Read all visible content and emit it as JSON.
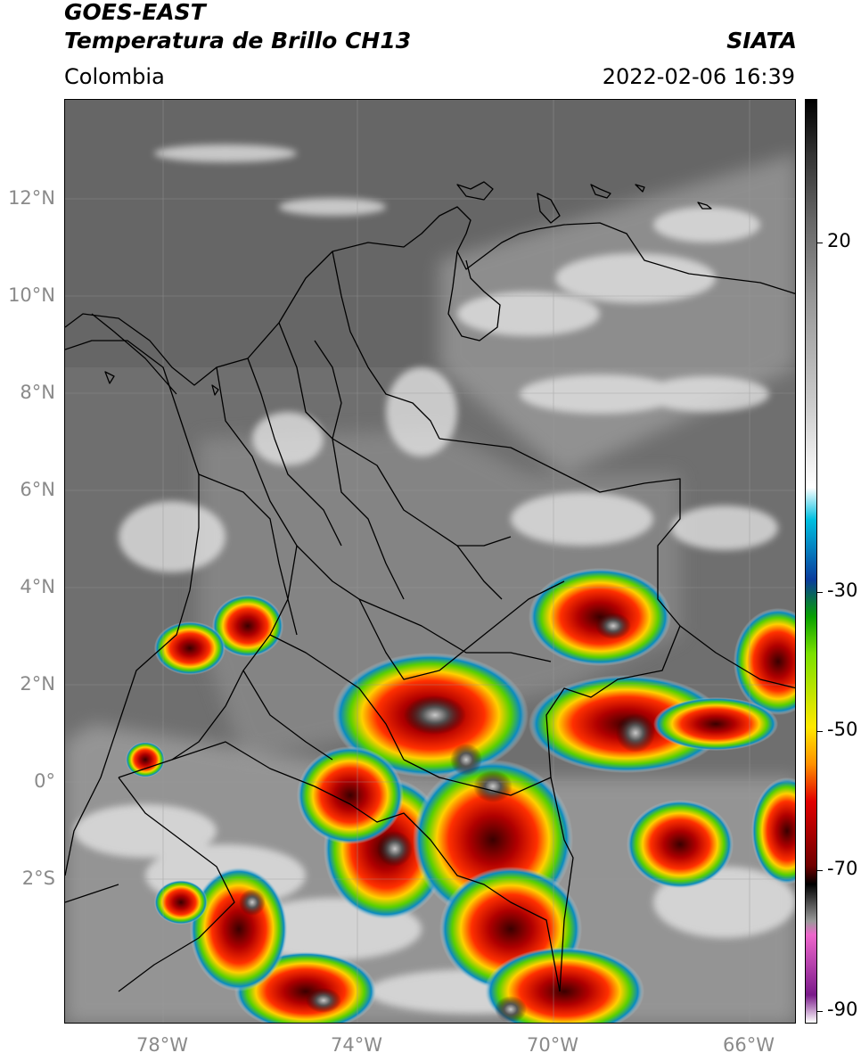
{
  "header": {
    "satellite": "GOES-EAST",
    "product": "Temperatura de Brillo CH13",
    "source": "SIATA",
    "region": "Colombia",
    "datetime": "2022-02-06 16:39"
  },
  "map": {
    "lat_labels": [
      "12°N",
      "10°N",
      "8°N",
      "6°N",
      "4°N",
      "2°N",
      "0°",
      "2°S"
    ],
    "lon_labels": [
      "78°W",
      "74°W",
      "70°W",
      "66°W"
    ]
  },
  "colorbar": {
    "tick_labels": [
      "20",
      "-30",
      "-50",
      "-70",
      "-90"
    ],
    "stops": [
      {
        "color": "#000000"
      },
      {
        "color": "#333333"
      },
      {
        "color": "#666666"
      },
      {
        "color": "#999999"
      },
      {
        "color": "#cccccc"
      },
      {
        "color": "#ffffff"
      },
      {
        "color": "#00bfe0"
      },
      {
        "color": "#0a3c9c"
      },
      {
        "color": "#08a000"
      },
      {
        "color": "#7ae000"
      },
      {
        "color": "#ffe800"
      },
      {
        "color": "#ff9000"
      },
      {
        "color": "#e20000"
      },
      {
        "color": "#700000"
      },
      {
        "color": "#000000"
      },
      {
        "color": "#999999"
      },
      {
        "color": "#ee66cc"
      },
      {
        "color": "#7a1a8a"
      },
      {
        "color": "#ffffff"
      }
    ]
  }
}
